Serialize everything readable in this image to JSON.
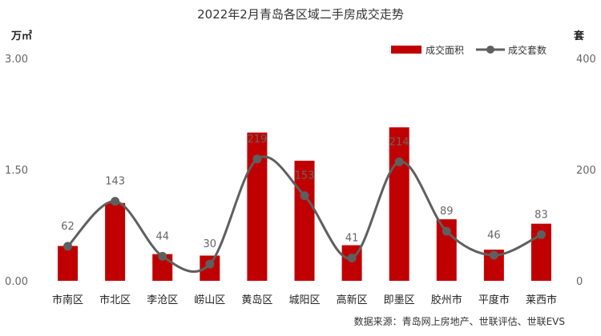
{
  "chart_data": {
    "type": "bar",
    "title": "2022年2月青岛各区域二手房成交走势",
    "categories": [
      "市南区",
      "市北区",
      "李沧区",
      "崂山区",
      "黄岛区",
      "城阳区",
      "高新区",
      "即墨区",
      "胶州市",
      "平度市",
      "莱西市"
    ],
    "series": [
      {
        "name": "成交面积",
        "type": "bar",
        "axis": "left",
        "color": "#C00000",
        "values": [
          0.47,
          1.05,
          0.36,
          0.34,
          2.0,
          1.62,
          0.48,
          2.07,
          0.83,
          0.42,
          0.77
        ]
      },
      {
        "name": "成交套数",
        "type": "line",
        "axis": "right",
        "color": "#5f5f5f",
        "values": [
          62,
          143,
          44,
          30,
          219,
          153,
          41,
          214,
          89,
          46,
          83
        ]
      }
    ],
    "y_left": {
      "unit": "万㎡",
      "ylim": [
        0,
        3
      ],
      "ticks": [
        "0.00",
        "1.50",
        "3.00"
      ]
    },
    "y_right": {
      "unit": "套",
      "ylim": [
        0,
        400
      ],
      "ticks": [
        "0",
        "200",
        "400"
      ]
    },
    "legend": {
      "position": "top-right"
    },
    "grid": false,
    "source": "数据来源：青岛网上房地产、世联评估、世联EVS"
  }
}
